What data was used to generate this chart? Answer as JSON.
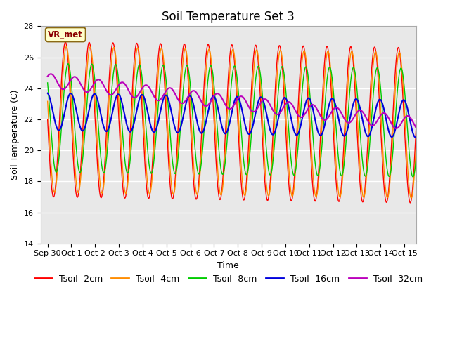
{
  "title": "Soil Temperature Set 3",
  "xlabel": "Time",
  "ylabel": "Soil Temperature (C)",
  "ylim": [
    14,
    28
  ],
  "xlim": [
    -0.3,
    15.5
  ],
  "x_tick_labels": [
    "Sep 30",
    "Oct 1",
    "Oct 2",
    "Oct 3",
    "Oct 4",
    "Oct 5",
    "Oct 6",
    "Oct 7",
    "Oct 8",
    "Oct 9",
    "Oct 10",
    "Oct 11",
    "Oct 12",
    "Oct 13",
    "Oct 14",
    "Oct 15"
  ],
  "x_tick_positions": [
    0,
    1,
    2,
    3,
    4,
    5,
    6,
    7,
    8,
    9,
    10,
    11,
    12,
    13,
    14,
    15
  ],
  "yticks": [
    14,
    16,
    18,
    20,
    22,
    24,
    26,
    28
  ],
  "legend_labels": [
    "Tsoil -2cm",
    "Tsoil -4cm",
    "Tsoil -8cm",
    "Tsoil -16cm",
    "Tsoil -32cm"
  ],
  "line_colors": [
    "#ff0000",
    "#ff8c00",
    "#00cc00",
    "#0000dd",
    "#bb00bb"
  ],
  "line_widths": [
    1.0,
    1.0,
    1.0,
    1.5,
    1.5
  ],
  "annotation_text": "VR_met",
  "plot_bg_color": "#e8e8e8",
  "title_fontsize": 12,
  "axis_fontsize": 9,
  "tick_fontsize": 8,
  "legend_fontsize": 9,
  "grid_color": "#ffffff"
}
